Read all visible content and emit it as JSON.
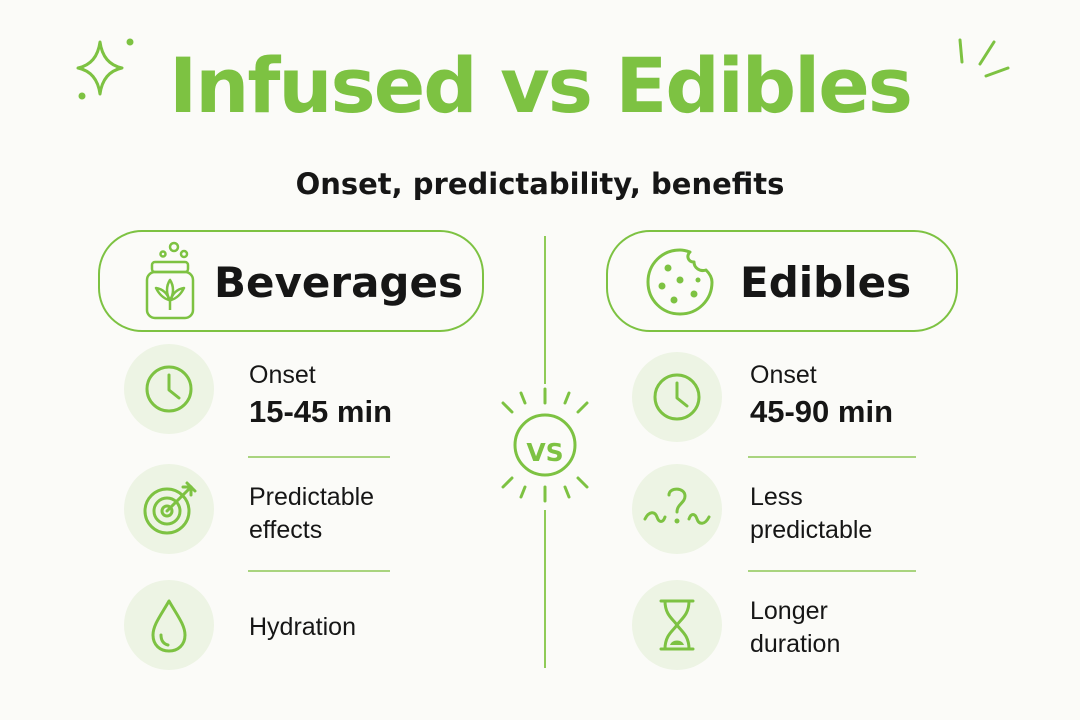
{
  "title": "Infused vs Edibles",
  "subtitle": "Onset, predictability, benefits",
  "vs_label": "VS",
  "colors": {
    "accent": "#7dc242",
    "icon_bg": "#edf4e4",
    "text": "#161616",
    "background": "#fbfbf8"
  },
  "left": {
    "heading": "Beverages",
    "heading_icon": "can-icon",
    "items": [
      {
        "icon": "clock-icon",
        "label": "Onset",
        "value": "15-45 min"
      },
      {
        "icon": "target-icon",
        "line1": "Predictable",
        "line2": "effects"
      },
      {
        "icon": "droplet-icon",
        "label": "Hydration"
      }
    ]
  },
  "right": {
    "heading": "Edibles",
    "heading_icon": "cookie-icon",
    "items": [
      {
        "icon": "clock-icon",
        "label": "Onset",
        "value": "45-90 min"
      },
      {
        "icon": "question-icon",
        "line1": "Less",
        "line2": "predictable"
      },
      {
        "icon": "hourglass-icon",
        "line1": "Longer",
        "line2": "duration"
      }
    ]
  }
}
